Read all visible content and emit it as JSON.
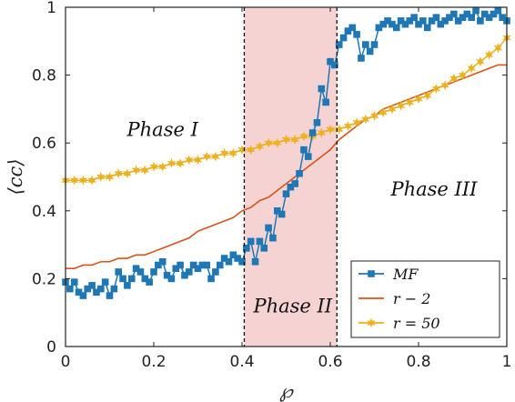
{
  "chart_data": {
    "type": "line",
    "xlabel": "℘",
    "ylabel": "⟨cc⟩",
    "xlim": [
      0,
      1
    ],
    "ylim": [
      0,
      1
    ],
    "x_ticks": [
      "0",
      "0.2",
      "0.4",
      "0.6",
      "0.8",
      "1"
    ],
    "y_ticks": [
      "0",
      "0.2",
      "0.4",
      "0.6",
      "0.8",
      "1"
    ],
    "grid": false,
    "legend_position": "bottom-right",
    "shaded_region": {
      "x_start": 0.405,
      "x_end": 0.615,
      "color": "#f5d3d3"
    },
    "phase_labels": [
      {
        "text": "Phase I",
        "x": 0.22,
        "y": 0.62
      },
      {
        "text": "Phase II",
        "x": 0.515,
        "y": 0.1
      },
      {
        "text": "Phase III",
        "x": 0.835,
        "y": 0.445
      }
    ],
    "series": [
      {
        "name": "MF",
        "color": "#1f77b4",
        "marker": "square",
        "x": [
          0.0,
          0.01,
          0.02,
          0.03,
          0.04,
          0.05,
          0.06,
          0.07,
          0.08,
          0.09,
          0.1,
          0.11,
          0.12,
          0.13,
          0.14,
          0.15,
          0.16,
          0.17,
          0.18,
          0.19,
          0.2,
          0.21,
          0.22,
          0.23,
          0.24,
          0.25,
          0.26,
          0.27,
          0.28,
          0.29,
          0.3,
          0.31,
          0.32,
          0.33,
          0.34,
          0.35,
          0.36,
          0.37,
          0.38,
          0.39,
          0.4,
          0.41,
          0.42,
          0.43,
          0.44,
          0.45,
          0.46,
          0.47,
          0.48,
          0.49,
          0.5,
          0.51,
          0.52,
          0.53,
          0.54,
          0.55,
          0.56,
          0.57,
          0.58,
          0.59,
          0.6,
          0.61,
          0.62,
          0.63,
          0.64,
          0.65,
          0.66,
          0.67,
          0.68,
          0.69,
          0.7,
          0.71,
          0.72,
          0.73,
          0.74,
          0.75,
          0.76,
          0.77,
          0.78,
          0.79,
          0.8,
          0.81,
          0.82,
          0.83,
          0.84,
          0.85,
          0.86,
          0.87,
          0.88,
          0.89,
          0.9,
          0.91,
          0.92,
          0.93,
          0.94,
          0.95,
          0.96,
          0.97,
          0.98,
          0.99,
          1.0
        ],
        "values": [
          0.19,
          0.17,
          0.19,
          0.16,
          0.15,
          0.17,
          0.18,
          0.16,
          0.17,
          0.19,
          0.15,
          0.17,
          0.22,
          0.2,
          0.18,
          0.2,
          0.23,
          0.22,
          0.2,
          0.19,
          0.22,
          0.24,
          0.25,
          0.21,
          0.2,
          0.23,
          0.24,
          0.21,
          0.22,
          0.24,
          0.23,
          0.24,
          0.24,
          0.2,
          0.22,
          0.24,
          0.26,
          0.25,
          0.27,
          0.26,
          0.25,
          0.29,
          0.31,
          0.25,
          0.31,
          0.29,
          0.35,
          0.32,
          0.4,
          0.39,
          0.45,
          0.47,
          0.48,
          0.51,
          0.58,
          0.56,
          0.63,
          0.66,
          0.76,
          0.72,
          0.84,
          0.83,
          0.89,
          0.91,
          0.93,
          0.94,
          0.92,
          0.85,
          0.89,
          0.87,
          0.89,
          0.94,
          0.95,
          0.96,
          0.95,
          0.94,
          0.96,
          0.95,
          0.96,
          0.97,
          0.95,
          0.96,
          0.94,
          0.96,
          0.97,
          0.95,
          0.96,
          0.97,
          0.98,
          0.96,
          0.97,
          0.98,
          0.97,
          0.99,
          0.96,
          0.98,
          0.97,
          0.98,
          0.99,
          0.97,
          0.96
        ]
      },
      {
        "name": "r − 2",
        "color": "#d95319",
        "marker": "none",
        "x": [
          0.0,
          0.02,
          0.04,
          0.06,
          0.08,
          0.1,
          0.12,
          0.14,
          0.16,
          0.18,
          0.2,
          0.22,
          0.24,
          0.26,
          0.28,
          0.3,
          0.32,
          0.34,
          0.36,
          0.38,
          0.4,
          0.42,
          0.44,
          0.46,
          0.48,
          0.5,
          0.52,
          0.54,
          0.56,
          0.58,
          0.6,
          0.62,
          0.64,
          0.66,
          0.68,
          0.7,
          0.72,
          0.74,
          0.76,
          0.78,
          0.8,
          0.82,
          0.84,
          0.86,
          0.88,
          0.9,
          0.92,
          0.94,
          0.96,
          0.98,
          1.0
        ],
        "values": [
          0.23,
          0.23,
          0.24,
          0.24,
          0.25,
          0.25,
          0.26,
          0.26,
          0.27,
          0.27,
          0.28,
          0.29,
          0.3,
          0.31,
          0.32,
          0.34,
          0.35,
          0.36,
          0.37,
          0.38,
          0.4,
          0.41,
          0.43,
          0.44,
          0.46,
          0.48,
          0.5,
          0.52,
          0.54,
          0.56,
          0.58,
          0.61,
          0.63,
          0.65,
          0.67,
          0.68,
          0.7,
          0.71,
          0.72,
          0.73,
          0.74,
          0.75,
          0.76,
          0.77,
          0.78,
          0.79,
          0.8,
          0.81,
          0.82,
          0.83,
          0.83
        ]
      },
      {
        "name": "r = 50",
        "color": "#edb120",
        "marker": "star",
        "x": [
          0.0,
          0.02,
          0.04,
          0.06,
          0.08,
          0.1,
          0.12,
          0.14,
          0.16,
          0.18,
          0.2,
          0.22,
          0.24,
          0.26,
          0.28,
          0.3,
          0.32,
          0.34,
          0.36,
          0.38,
          0.4,
          0.42,
          0.44,
          0.46,
          0.48,
          0.5,
          0.52,
          0.54,
          0.56,
          0.58,
          0.6,
          0.62,
          0.64,
          0.66,
          0.68,
          0.7,
          0.72,
          0.74,
          0.76,
          0.78,
          0.8,
          0.82,
          0.84,
          0.86,
          0.88,
          0.9,
          0.92,
          0.94,
          0.96,
          0.98,
          1.0
        ],
        "values": [
          0.49,
          0.49,
          0.49,
          0.49,
          0.5,
          0.5,
          0.51,
          0.51,
          0.52,
          0.52,
          0.53,
          0.53,
          0.54,
          0.54,
          0.55,
          0.55,
          0.56,
          0.56,
          0.57,
          0.57,
          0.58,
          0.58,
          0.59,
          0.6,
          0.6,
          0.61,
          0.61,
          0.62,
          0.62,
          0.63,
          0.64,
          0.64,
          0.65,
          0.66,
          0.67,
          0.68,
          0.69,
          0.7,
          0.71,
          0.72,
          0.73,
          0.74,
          0.76,
          0.77,
          0.79,
          0.8,
          0.82,
          0.84,
          0.86,
          0.88,
          0.91
        ]
      }
    ]
  }
}
